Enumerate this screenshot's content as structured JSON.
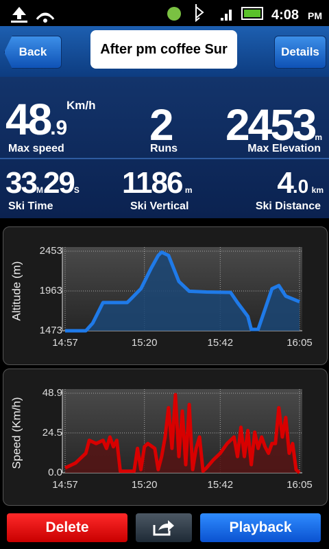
{
  "status_bar": {
    "time": "4:08",
    "meridiem": "PM"
  },
  "nav": {
    "back": "Back",
    "title": "After pm coffee Sur",
    "details": "Details"
  },
  "stats": {
    "max_speed": {
      "value": "48",
      "decimal": ".9",
      "unit": "Km/h",
      "label": "Max speed"
    },
    "runs": {
      "value": "2",
      "label": "Runs"
    },
    "max_elevation": {
      "value": "2453",
      "unit": "m",
      "label": "Max Elevation"
    },
    "ski_time": {
      "minutes": "33",
      "minutes_unit": "M",
      "seconds": "29",
      "seconds_unit": "S",
      "label": "Ski Time"
    },
    "ski_vertical": {
      "value": "1186",
      "unit": "m",
      "label": "Ski Vertical"
    },
    "ski_distance": {
      "value": "4",
      "decimal": ".0",
      "unit": "km",
      "label": "Ski Distance"
    }
  },
  "chart_data": [
    {
      "type": "line",
      "ylabel": "Altitude (m)",
      "color": "#1f7ae8",
      "fill": "#1b4675",
      "x": [
        897,
        903,
        905,
        908,
        915,
        916,
        919,
        922,
        924,
        925,
        927,
        930,
        933,
        938,
        945,
        947,
        950,
        951,
        953,
        957,
        959,
        961,
        965
      ],
      "values": [
        1473,
        1473,
        1566,
        1820,
        1820,
        1862,
        1990,
        2246,
        2400,
        2440,
        2400,
        2080,
        1960,
        1950,
        1945,
        1820,
        1650,
        1490,
        1490,
        1990,
        2030,
        1900,
        1830
      ],
      "xlim": [
        897,
        965
      ],
      "xticks": [
        {
          "value": 897,
          "label": "14:57"
        },
        {
          "value": 920,
          "label": "15:20"
        },
        {
          "value": 942,
          "label": "15:42"
        },
        {
          "value": 965,
          "label": "16:05"
        }
      ],
      "ylim": [
        1473,
        2453
      ],
      "yticks": [
        1473,
        1963,
        2453
      ],
      "grid": true
    },
    {
      "type": "line",
      "ylabel": "Speed (Km/h)",
      "color": "#d80000",
      "fill": "#561414",
      "x": [
        897,
        900,
        903,
        904,
        906,
        908,
        909,
        910,
        911,
        912,
        913,
        915,
        917,
        918,
        919,
        920,
        921,
        923,
        924,
        925,
        926,
        927,
        928,
        929,
        930,
        931,
        932,
        933,
        934,
        935,
        936,
        937,
        938,
        940,
        942,
        944,
        945,
        946,
        947,
        948,
        949,
        950,
        951,
        952,
        953,
        954,
        955,
        956,
        957,
        958,
        959,
        960,
        961,
        962,
        963,
        964,
        965
      ],
      "values": [
        3,
        6,
        12,
        20,
        18,
        20,
        15,
        22,
        16,
        20,
        1,
        1,
        1,
        15,
        2,
        16,
        18,
        15,
        2,
        10,
        22,
        40,
        15,
        48,
        10,
        38,
        5,
        42,
        2,
        15,
        22,
        1,
        3,
        8,
        12,
        18,
        20,
        22,
        10,
        28,
        10,
        26,
        5,
        25,
        15,
        22,
        16,
        12,
        18,
        18,
        40,
        22,
        34,
        12,
        18,
        2,
        0
      ],
      "xlim": [
        897,
        965
      ],
      "xticks": [
        {
          "value": 897,
          "label": "14:57"
        },
        {
          "value": 920,
          "label": "15:20"
        },
        {
          "value": 942,
          "label": "15:42"
        },
        {
          "value": 965,
          "label": "16:05"
        }
      ],
      "ylim": [
        0,
        48.9
      ],
      "yticks": [
        {
          "value": 0,
          "label": "0.0"
        },
        24.5,
        48.9
      ],
      "grid": true
    }
  ],
  "buttons": {
    "delete": "Delete",
    "playback": "Playback"
  }
}
